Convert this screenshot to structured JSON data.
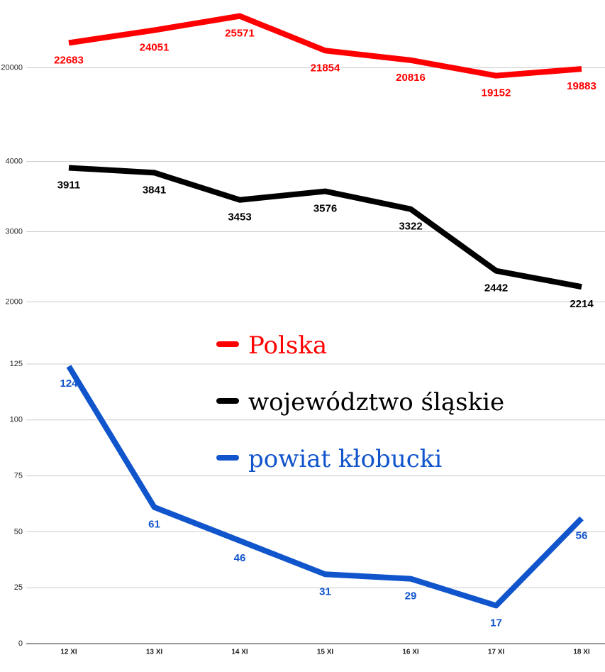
{
  "chart_data": [
    {
      "type": "line",
      "ylim": [
        15000,
        27300
      ],
      "yticks": [
        20000
      ],
      "grid": true,
      "series": [
        {
          "name": "Polska",
          "color": "#ff0000",
          "values": [
            22683,
            24051,
            25571,
            21854,
            20816,
            19152,
            19883
          ]
        }
      ]
    },
    {
      "type": "line",
      "ylim": [
        1700,
        4300
      ],
      "yticks": [
        2000,
        3000,
        4000
      ],
      "grid": true,
      "series": [
        {
          "name": "województwo śląskie",
          "color": "#000000",
          "values": [
            3911,
            3841,
            3453,
            3576,
            3322,
            2442,
            2214
          ]
        }
      ]
    },
    {
      "type": "line",
      "ylim": [
        0,
        125
      ],
      "yticks": [
        0,
        25,
        50,
        75,
        100,
        125
      ],
      "grid": true,
      "categories": [
        "12 XI",
        "13 XI",
        "14 XI",
        "15 XI",
        "16 XI",
        "17 XI",
        "18 XI"
      ],
      "series": [
        {
          "name": "powiat kłobucki",
          "color": "#1155cc",
          "values": [
            124,
            61,
            46,
            31,
            29,
            17,
            56
          ]
        }
      ]
    }
  ]
}
